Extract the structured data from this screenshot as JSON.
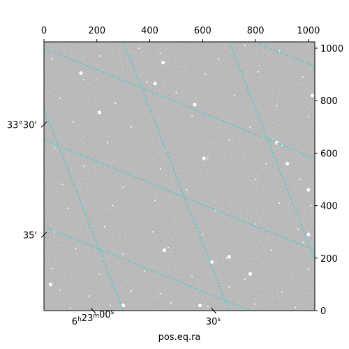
{
  "chart_data": {
    "type": "image",
    "xlabel": "pos.eq.ra",
    "pixel_axes": {
      "x_ticks": [
        0,
        200,
        400,
        600,
        800,
        1000
      ],
      "y_ticks": [
        0,
        200,
        400,
        600,
        800,
        1000
      ],
      "xlim": [
        0,
        1024
      ],
      "ylim": [
        0,
        1024
      ]
    },
    "world_axes": {
      "ra_ticks": [
        {
          "label_base": "6",
          "h": "h",
          "mid": "23",
          "m": "m",
          "sec": "00",
          "s": "s",
          "px": 185
        },
        {
          "label_base": "30",
          "s": "s",
          "px": 640
        }
      ],
      "dec_ticks": [
        {
          "label": "33°30'",
          "py": 315
        },
        {
          "label": "35'",
          "py": 735
        }
      ]
    },
    "grid_color": "#2ed3d3",
    "ra_grid_lines": [
      {
        "x0": -400,
        "x1": 0
      },
      {
        "x0": -100,
        "x1": 300
      },
      {
        "x0": 300,
        "x1": 700
      },
      {
        "x0": 700,
        "x1": 1100
      },
      {
        "x0": 1100,
        "x1": 1500
      }
    ],
    "dec_grid_lines": [
      {
        "y0": 320,
        "y1": -100
      },
      {
        "y0": 650,
        "y1": 230
      },
      {
        "y0": 1000,
        "y1": 580
      },
      {
        "y0": 1350,
        "y1": 930
      }
    ],
    "stars": [
      [
        100,
        10
      ],
      [
        250,
        20
      ],
      [
        480,
        30
      ],
      [
        620,
        15
      ],
      [
        800,
        25
      ],
      [
        950,
        12
      ],
      [
        60,
        80
      ],
      [
        170,
        55
      ],
      [
        330,
        75
      ],
      [
        440,
        65
      ],
      [
        700,
        90
      ],
      [
        900,
        70
      ],
      [
        30,
        160
      ],
      [
        210,
        140
      ],
      [
        380,
        150
      ],
      [
        560,
        130
      ],
      [
        760,
        120
      ],
      [
        1000,
        160
      ],
      [
        120,
        235
      ],
      [
        300,
        215
      ],
      [
        470,
        240
      ],
      [
        690,
        200
      ],
      [
        860,
        230
      ],
      [
        980,
        260
      ],
      [
        40,
        300
      ],
      [
        230,
        320
      ],
      [
        410,
        300
      ],
      [
        600,
        290
      ],
      [
        800,
        330
      ],
      [
        960,
        310
      ],
      [
        90,
        390
      ],
      [
        260,
        400
      ],
      [
        420,
        420
      ],
      [
        650,
        380
      ],
      [
        890,
        410
      ],
      [
        1010,
        400
      ],
      [
        70,
        480
      ],
      [
        300,
        470
      ],
      [
        540,
        460
      ],
      [
        800,
        500
      ],
      [
        970,
        500
      ],
      [
        150,
        550
      ],
      [
        440,
        540
      ],
      [
        620,
        580
      ],
      [
        840,
        560
      ],
      [
        40,
        620
      ],
      [
        240,
        640
      ],
      [
        460,
        610
      ],
      [
        700,
        650
      ],
      [
        900,
        630
      ],
      [
        110,
        720
      ],
      [
        330,
        700
      ],
      [
        560,
        740
      ],
      [
        780,
        700
      ],
      [
        1000,
        740
      ],
      [
        60,
        810
      ],
      [
        270,
        790
      ],
      [
        500,
        830
      ],
      [
        720,
        820
      ],
      [
        880,
        780
      ],
      [
        150,
        880
      ],
      [
        390,
        870
      ],
      [
        610,
        900
      ],
      [
        810,
        910
      ],
      [
        980,
        890
      ],
      [
        30,
        960
      ],
      [
        210,
        970
      ],
      [
        440,
        980
      ],
      [
        660,
        960
      ],
      [
        890,
        990
      ],
      [
        360,
        1000
      ],
      [
        760,
        1010
      ]
    ],
    "bright_stars": [
      [
        25,
        100
      ],
      [
        300,
        20
      ],
      [
        590,
        20
      ],
      [
        635,
        185
      ],
      [
        700,
        205
      ],
      [
        780,
        140
      ],
      [
        455,
        230
      ],
      [
        605,
        580
      ],
      [
        1000,
        460
      ],
      [
        570,
        785
      ],
      [
        420,
        865
      ],
      [
        210,
        755
      ],
      [
        1015,
        820
      ],
      [
        450,
        945
      ],
      [
        140,
        905
      ],
      [
        920,
        560
      ],
      [
        880,
        640
      ],
      [
        1000,
        290
      ]
    ]
  }
}
